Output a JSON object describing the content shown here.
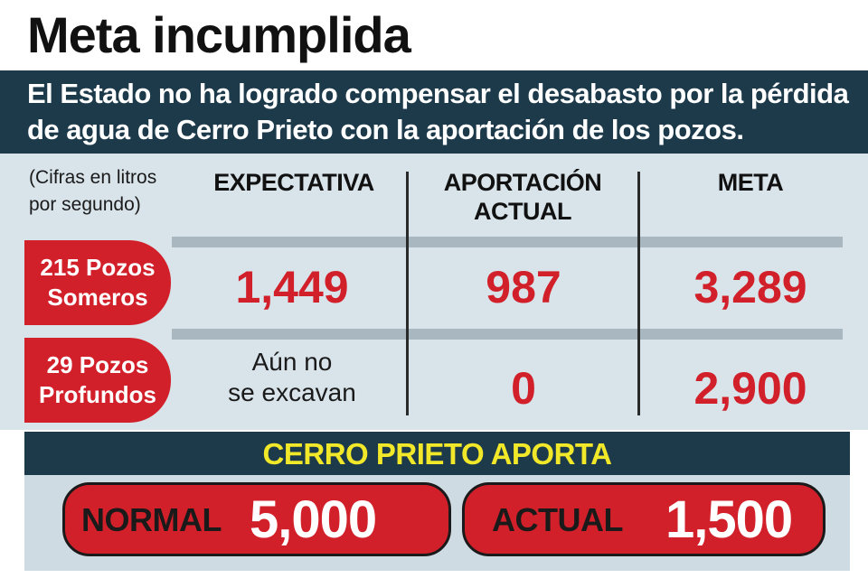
{
  "title": "Meta incumplida",
  "subtitle": "El Estado no ha logrado compensar el desabasto por la pérdida de agua de Cerro Prieto con la aportación de los pozos.",
  "colors": {
    "red": "#d2202a",
    "navy": "#1d3a4b",
    "yellow": "#f2e82a",
    "light": "#d8e3ea"
  },
  "chart_data": {
    "type": "table",
    "units_note_line1": "(Cifras en litros",
    "units_note_line2": "por segundo)",
    "columns": {
      "expectativa": "EXPECTATIVA",
      "aportacion_line1": "APORTACIÓN",
      "aportacion_line2": "ACTUAL",
      "meta": "META"
    },
    "rows": [
      {
        "label_line1": "215 Pozos",
        "label_line2": "Someros",
        "expectativa": "1,449",
        "aportacion_actual": "987",
        "meta": "3,289"
      },
      {
        "label_line1": "29 Pozos",
        "label_line2": "Profundos",
        "expectativa_line1": "Aún no",
        "expectativa_line2": "se excavan",
        "aportacion_actual": "0",
        "meta": "2,900"
      }
    ],
    "cerro_prieto": {
      "title": "CERRO PRIETO APORTA",
      "normal_label": "NORMAL",
      "normal_value": "5,000",
      "actual_label": "ACTUAL",
      "actual_value": "1,500"
    }
  }
}
